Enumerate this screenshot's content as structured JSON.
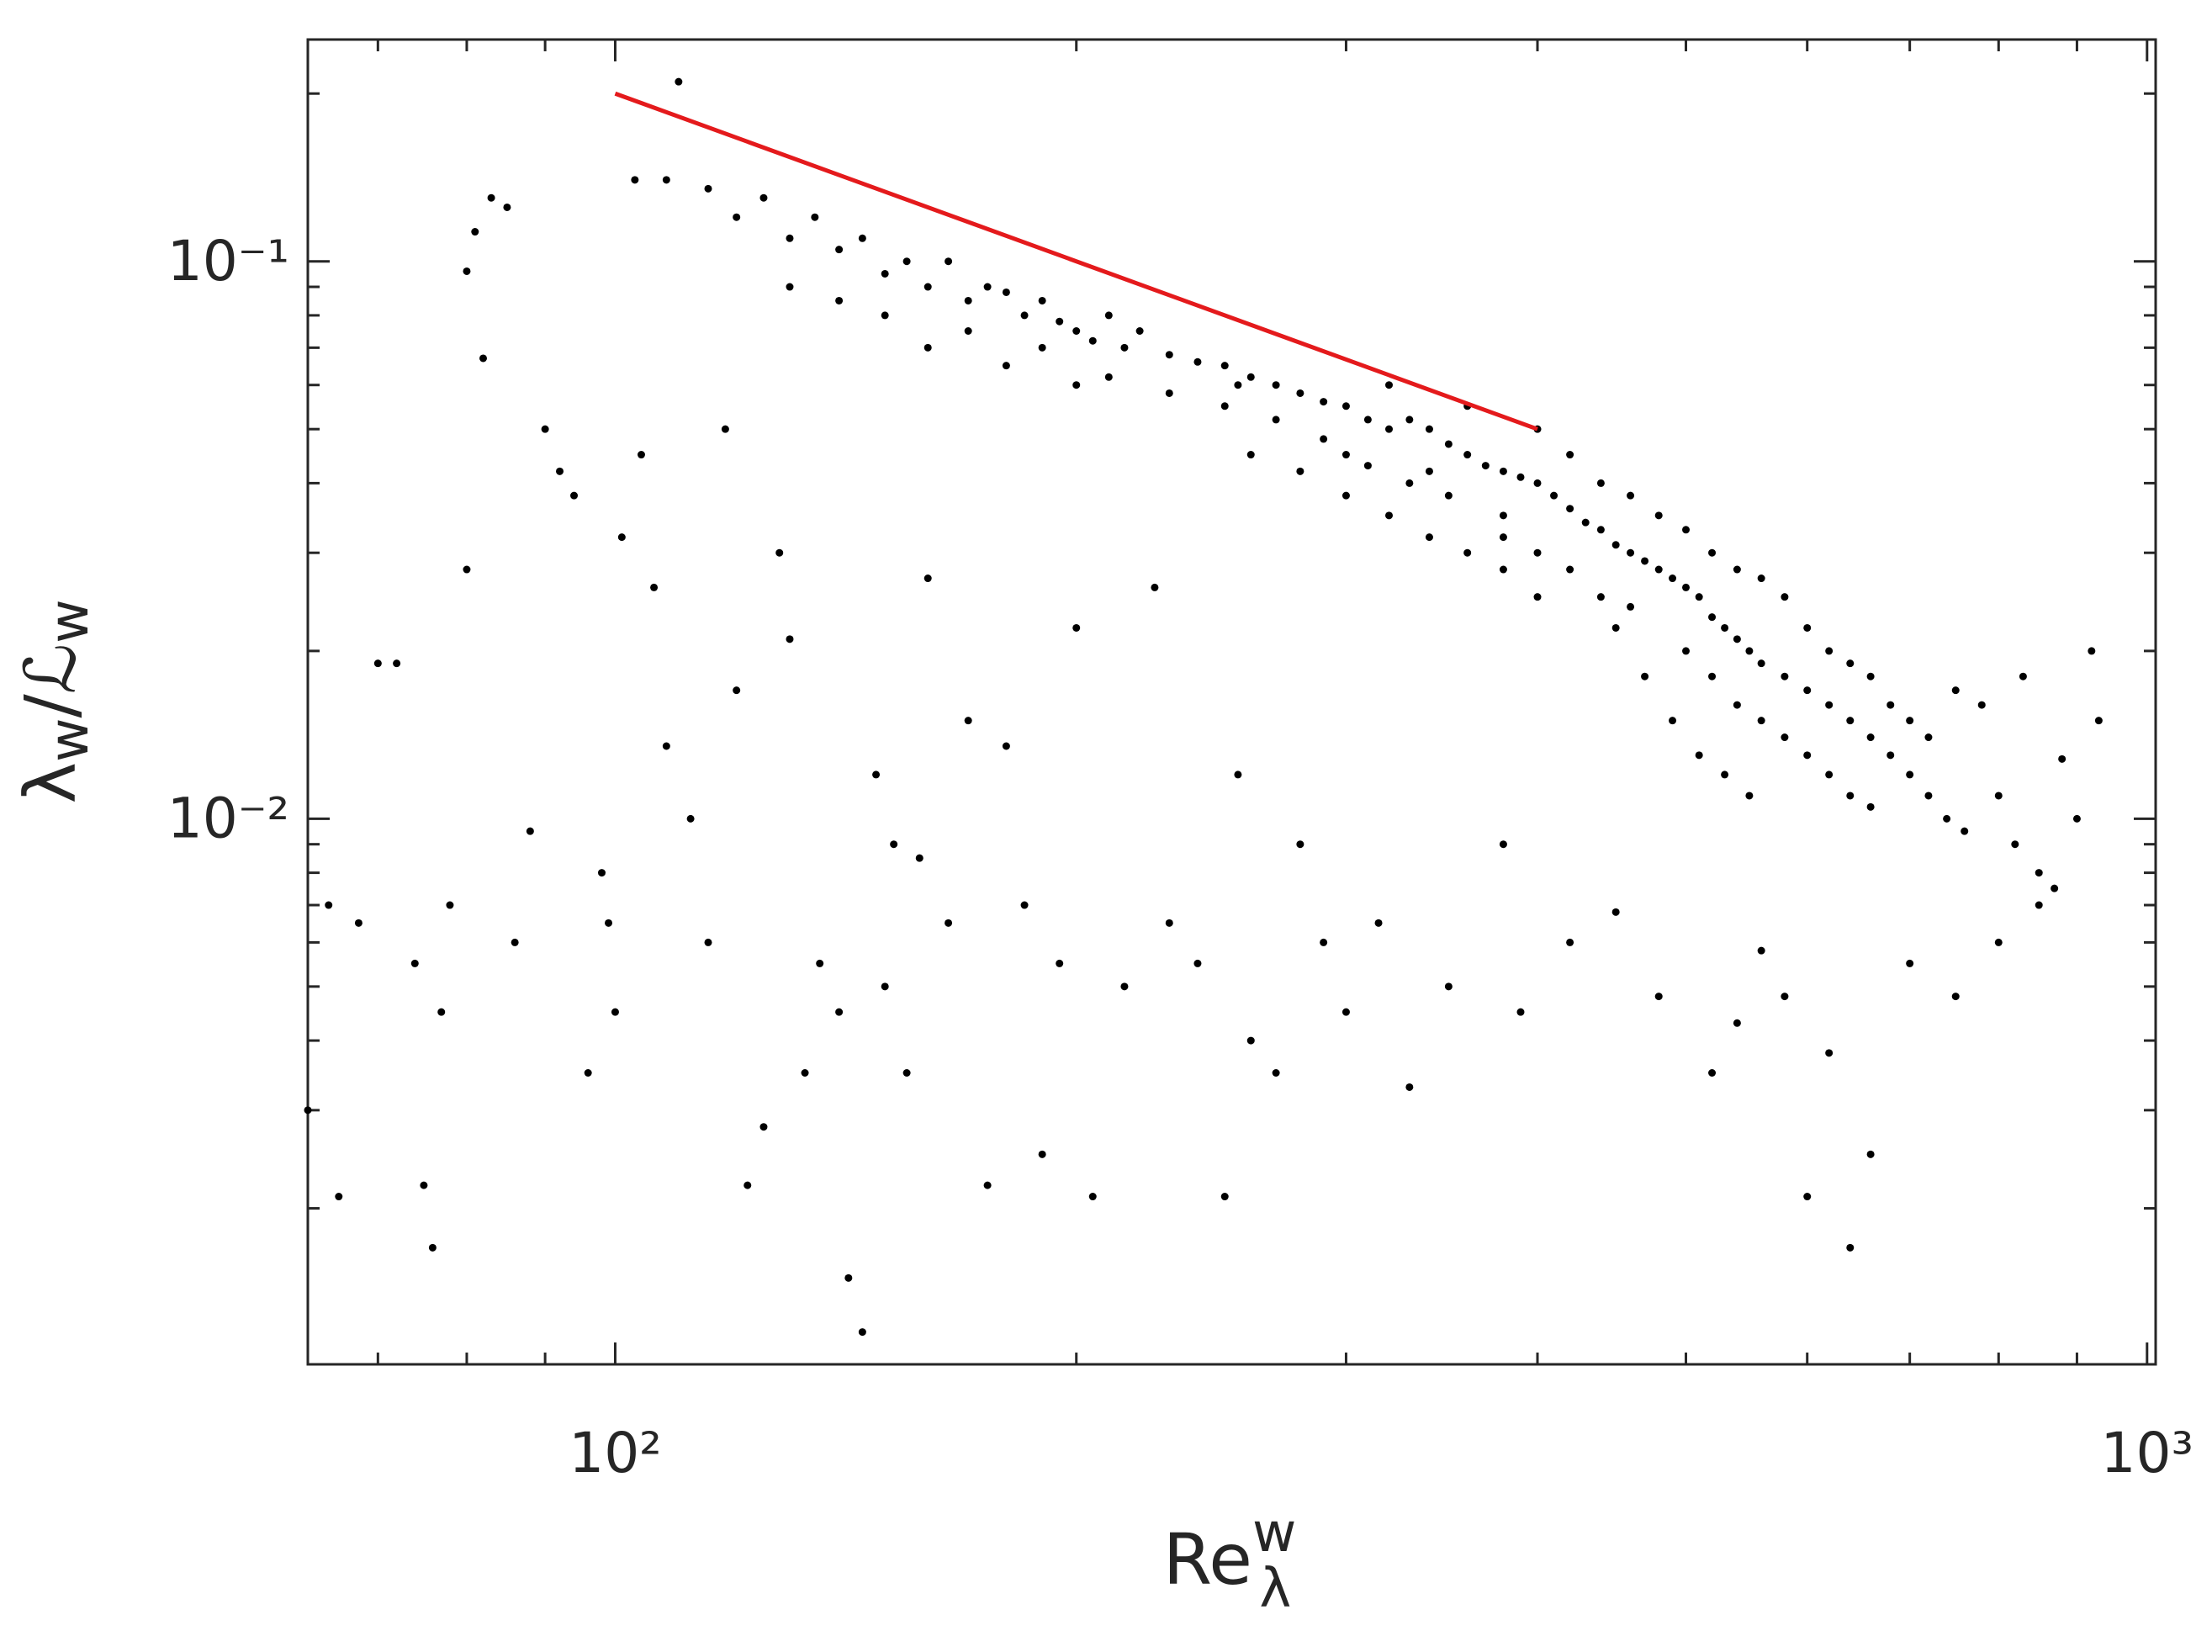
{
  "chart_data": {
    "type": "scatter",
    "xlabel": [
      "Re",
      "w",
      "λ"
    ],
    "ylabel": [
      "λ",
      "w",
      "/ℒ",
      "w"
    ],
    "xlog": true,
    "ylog": true,
    "xlim": [
      63,
      1013
    ],
    "ylim": [
      0.00105,
      0.25
    ],
    "xticks": [
      {
        "value": 100,
        "label": "10²"
      },
      {
        "value": 1000,
        "label": "10³"
      }
    ],
    "yticks": [
      {
        "value": 0.01,
        "label": "10⁻²"
      },
      {
        "value": 0.1,
        "label": "10⁻¹"
      }
    ],
    "xminorticks": [
      70,
      80,
      90,
      200,
      300,
      400,
      500,
      600,
      700,
      800,
      900
    ],
    "yminorticks": [
      0.002,
      0.003,
      0.004,
      0.005,
      0.006,
      0.007,
      0.008,
      0.009,
      0.02,
      0.03,
      0.04,
      0.05,
      0.06,
      0.07,
      0.08,
      0.09,
      0.2
    ],
    "series": [
      {
        "color": "#000000",
        "x": [
          110,
          103,
          108,
          115,
          125,
          120,
          130,
          135,
          140,
          145,
          150,
          155,
          160,
          165,
          170,
          175,
          180,
          185,
          190,
          195,
          200,
          205,
          210,
          215,
          220,
          230,
          240,
          250,
          255,
          260,
          270,
          280,
          290,
          300,
          310,
          320,
          330,
          340,
          350,
          360,
          370,
          380,
          390,
          400,
          410,
          420,
          430,
          440,
          450,
          460,
          470,
          480,
          490,
          500,
          510,
          520,
          530,
          540,
          550,
          560,
          580,
          600,
          620,
          640,
          660,
          680,
          700,
          720,
          740,
          760,
          300,
          320,
          340,
          360,
          380,
          400,
          420,
          440,
          460,
          480,
          500,
          520,
          540,
          560,
          580,
          600,
          620,
          640,
          660,
          680,
          700,
          720,
          500,
          520,
          540,
          560,
          580,
          600,
          620,
          640,
          660,
          450,
          470,
          490,
          510,
          530,
          550,
          400,
          420,
          440,
          460,
          380,
          350,
          330,
          310,
          290,
          270,
          250,
          230,
          210,
          190,
          170,
          150,
          140,
          130,
          180,
          160,
          200,
          260,
          280,
          300,
          320,
          340,
          360,
          380,
          400,
          800,
          820,
          850,
          870,
          900,
          880,
          920,
          930,
          830,
          780,
          750,
          65,
          63,
          66,
          68,
          70,
          72,
          74,
          75,
          76,
          77,
          78,
          80,
          80,
          81,
          83,
          85,
          82,
          86,
          88,
          90,
          92,
          94,
          96,
          98,
          99,
          100,
          101,
          104,
          106,
          108,
          112,
          115,
          118,
          120,
          122,
          125,
          128,
          130,
          133,
          136,
          140,
          142,
          145,
          148,
          150,
          152,
          155,
          158,
          160,
          165,
          170,
          175,
          180,
          185,
          190,
          195,
          200,
          205,
          215,
          225,
          230,
          240,
          250,
          255,
          260,
          270,
          280,
          290,
          300,
          315,
          330,
          350,
          380,
          390,
          420,
          450,
          480,
          520,
          540,
          560,
          580,
          600,
          620,
          640,
          660,
          700,
          750,
          800,
          850
        ],
        "values": [
          0.21,
          0.14,
          0.14,
          0.135,
          0.13,
          0.12,
          0.11,
          0.12,
          0.105,
          0.11,
          0.095,
          0.1,
          0.09,
          0.1,
          0.085,
          0.09,
          0.088,
          0.08,
          0.085,
          0.078,
          0.075,
          0.072,
          0.08,
          0.07,
          0.075,
          0.068,
          0.066,
          0.065,
          0.06,
          0.062,
          0.06,
          0.058,
          0.056,
          0.055,
          0.052,
          0.05,
          0.052,
          0.05,
          0.047,
          0.045,
          0.043,
          0.042,
          0.041,
          0.04,
          0.038,
          0.036,
          0.034,
          0.033,
          0.031,
          0.03,
          0.029,
          0.028,
          0.027,
          0.026,
          0.025,
          0.023,
          0.022,
          0.021,
          0.02,
          0.019,
          0.018,
          0.017,
          0.016,
          0.015,
          0.014,
          0.013,
          0.012,
          0.011,
          0.01,
          0.0095,
          0.045,
          0.06,
          0.042,
          0.055,
          0.035,
          0.05,
          0.045,
          0.04,
          0.038,
          0.035,
          0.033,
          0.03,
          0.028,
          0.027,
          0.025,
          0.022,
          0.02,
          0.019,
          0.018,
          0.016,
          0.015,
          0.014,
          0.02,
          0.018,
          0.016,
          0.015,
          0.014,
          0.013,
          0.012,
          0.011,
          0.0105,
          0.022,
          0.018,
          0.015,
          0.013,
          0.012,
          0.011,
          0.03,
          0.028,
          0.025,
          0.024,
          0.032,
          0.038,
          0.04,
          0.043,
          0.048,
          0.052,
          0.055,
          0.058,
          0.062,
          0.07,
          0.075,
          0.08,
          0.085,
          0.09,
          0.065,
          0.07,
          0.06,
          0.045,
          0.042,
          0.038,
          0.035,
          0.032,
          0.03,
          0.028,
          0.025,
          0.011,
          0.009,
          0.008,
          0.0075,
          0.01,
          0.0128,
          0.02,
          0.015,
          0.018,
          0.016,
          0.017,
          0.007,
          0.003,
          0.0021,
          0.0065,
          0.019,
          0.019,
          0.0055,
          0.0022,
          0.0017,
          0.0045,
          0.007,
          0.028,
          0.096,
          0.113,
          0.13,
          0.125,
          0.067,
          0.006,
          0.0095,
          0.05,
          0.042,
          0.038,
          0.0035,
          0.008,
          0.0065,
          0.0045,
          0.032,
          0.045,
          0.026,
          0.0135,
          0.01,
          0.006,
          0.05,
          0.017,
          0.0022,
          0.0028,
          0.03,
          0.021,
          0.0035,
          0.0055,
          0.0045,
          0.0015,
          0.0012,
          0.012,
          0.005,
          0.009,
          0.0035,
          0.0085,
          0.027,
          0.0065,
          0.015,
          0.0022,
          0.0135,
          0.007,
          0.0025,
          0.0055,
          0.022,
          0.0021,
          0.005,
          0.026,
          0.0065,
          0.0055,
          0.0021,
          0.012,
          0.004,
          0.0035,
          0.009,
          0.006,
          0.0045,
          0.0065,
          0.0033,
          0.005,
          0.009,
          0.0045,
          0.006,
          0.0068,
          0.0048,
          0.0035,
          0.0043,
          0.0058,
          0.0048,
          0.0021,
          0.0038,
          0.0017,
          0.0025,
          0.0055,
          0.0048,
          0.006,
          0.007
        ]
      }
    ],
    "lines": [
      {
        "color": "#e41a1c",
        "x": [
          100,
          400
        ],
        "values": [
          0.2,
          0.05
        ]
      }
    ]
  }
}
